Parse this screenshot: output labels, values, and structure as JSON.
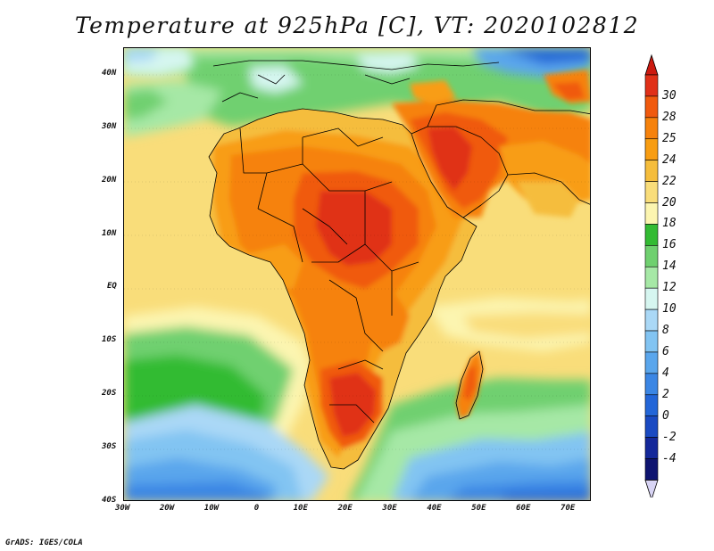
{
  "title": "Temperature at 925hPa [C], VT: 2020102812",
  "credit": "GrADS: IGES/COLA",
  "map": {
    "lat_labels": [
      "40N",
      "30N",
      "20N",
      "10N",
      "EQ",
      "10S",
      "20S",
      "30S",
      "40S"
    ],
    "lon_labels": [
      "30W",
      "20W",
      "10W",
      "0",
      "10E",
      "20E",
      "30E",
      "40E",
      "50E",
      "60E",
      "70E"
    ],
    "lat_range": [
      -40,
      45
    ],
    "lon_range": [
      -30,
      75
    ]
  },
  "colorbar": {
    "labels": [
      "30",
      "28",
      "25",
      "24",
      "22",
      "20",
      "18",
      "16",
      "14",
      "12",
      "10",
      "8",
      "6",
      "4",
      "2",
      "0",
      "-2",
      "-4"
    ],
    "colors": [
      "#e03018",
      "#f05a0e",
      "#f6820c",
      "#f89d12",
      "#f5bd3c",
      "#f9dd7a",
      "#fcf5b0",
      "#33bb33",
      "#6fd06f",
      "#a6e8a6",
      "#d6f6f0",
      "#aad8f6",
      "#82c4f2",
      "#5aa6ec",
      "#3b86e4",
      "#2366d8",
      "#1a4ac2",
      "#14289a",
      "#0e1470"
    ],
    "under_color": "#d8d4f4",
    "over_color": "#cc1a10"
  }
}
